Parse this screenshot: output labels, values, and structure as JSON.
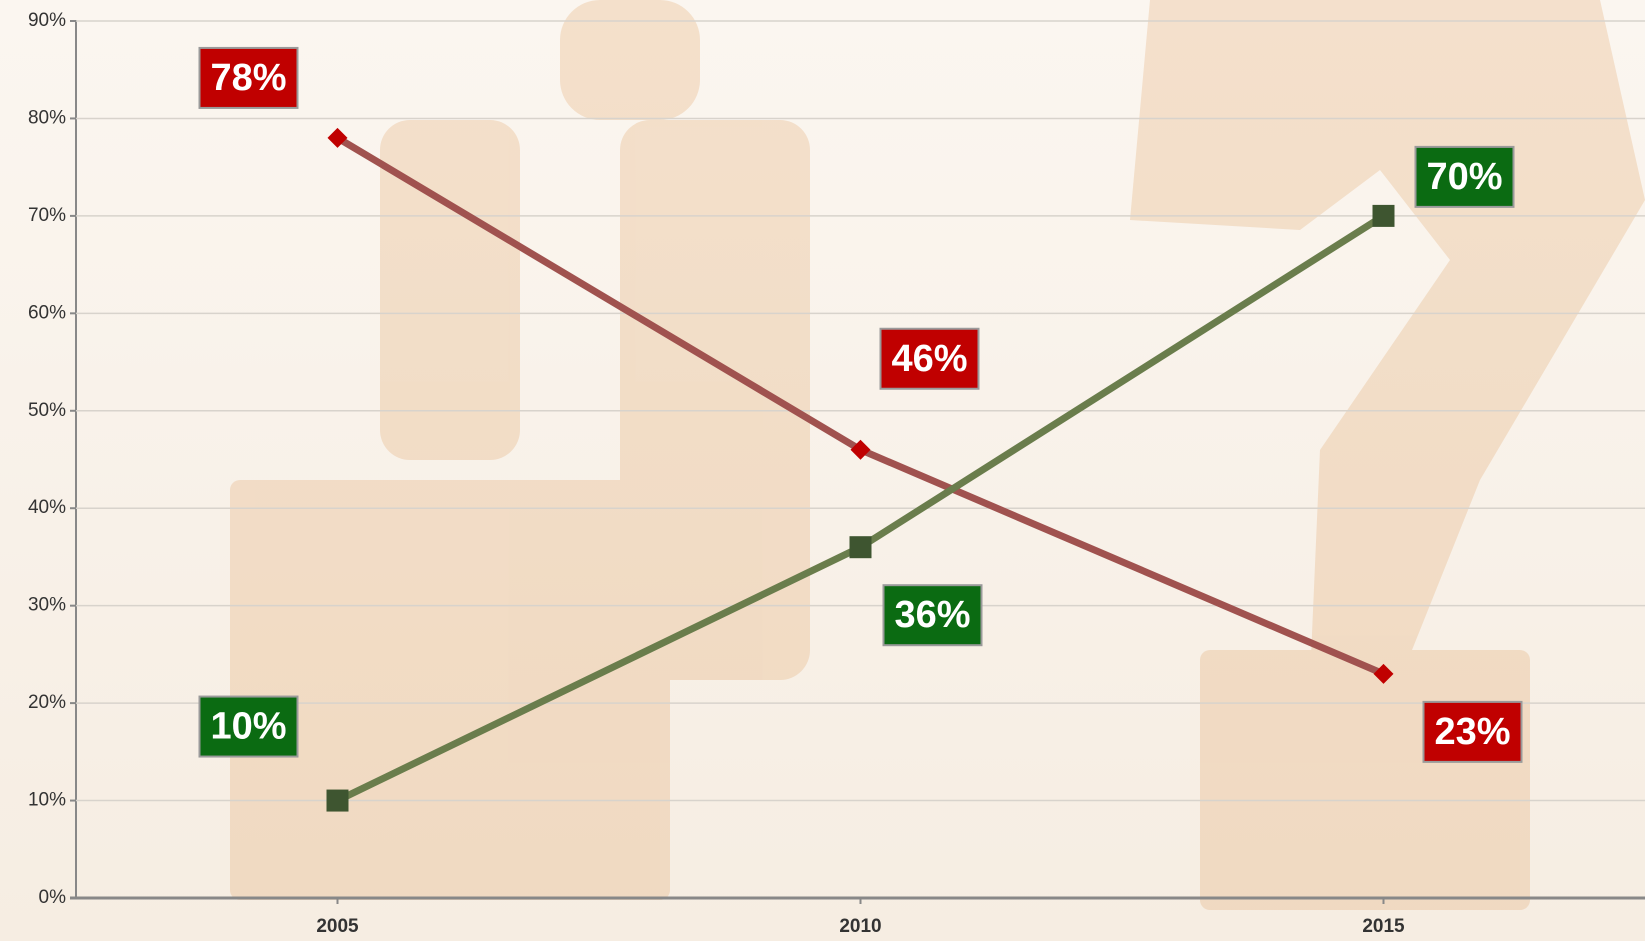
{
  "chart_data": {
    "type": "line",
    "categories": [
      "2005",
      "2010",
      "2015"
    ],
    "series": [
      {
        "color": "#c00000",
        "line_color": "#a0524f",
        "marker": "diamond",
        "values": [
          78,
          46,
          23
        ],
        "value_labels": [
          "78%",
          "46%",
          "23%"
        ]
      },
      {
        "color": "#0b6b12",
        "line_color": "#6a7d4c",
        "marker": "square",
        "values": [
          10,
          36,
          70
        ],
        "value_labels": [
          "10%",
          "36%",
          "70%"
        ]
      }
    ],
    "ylim": [
      0,
      90
    ],
    "yticks": [
      {
        "value": 0,
        "label": "0%"
      },
      {
        "value": 10,
        "label": "10%"
      },
      {
        "value": 20,
        "label": "20%"
      },
      {
        "value": 30,
        "label": "30%"
      },
      {
        "value": 40,
        "label": "40%"
      },
      {
        "value": 50,
        "label": "50%"
      },
      {
        "value": 60,
        "label": "60%"
      },
      {
        "value": 70,
        "label": "70%"
      },
      {
        "value": 80,
        "label": "80%"
      },
      {
        "value": 90,
        "label": "90%"
      }
    ],
    "grid": true
  }
}
